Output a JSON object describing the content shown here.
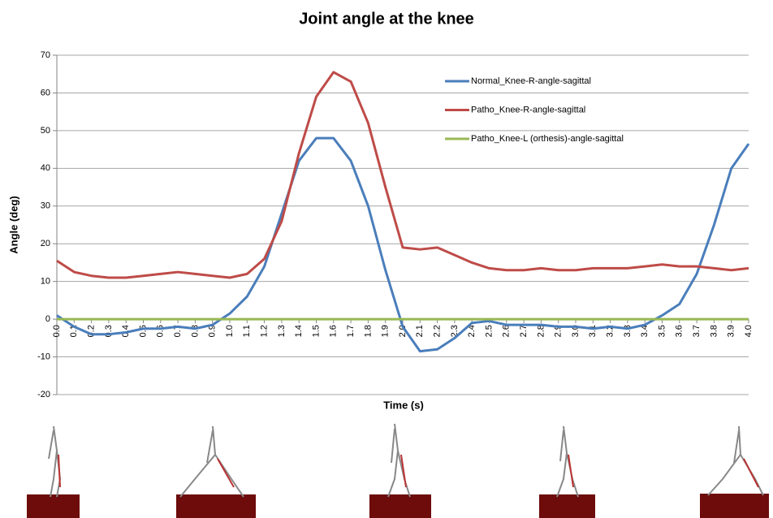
{
  "chart_data": {
    "type": "line",
    "title": "Joint angle at the knee",
    "x_label": "Time (s)",
    "y_label": "Angle (deg)",
    "x": [
      0,
      0.1,
      0.2,
      0.3,
      0.4,
      0.5,
      0.6,
      0.7,
      0.8,
      0.9,
      1,
      1.1,
      1.2,
      1.3,
      1.4,
      1.5,
      1.6,
      1.7,
      1.8,
      1.9,
      2,
      2.1,
      2.2,
      2.3,
      2.4,
      2.5,
      2.6,
      2.7,
      2.8,
      2.9,
      3,
      3.1,
      3.2,
      3.3,
      3.4,
      3.5,
      3.6,
      3.7,
      3.8,
      3.9,
      4
    ],
    "series": [
      {
        "name": "Normal_Knee-R-angle-sagittal",
        "color": "#4a7ebb",
        "values": [
          1,
          -2,
          -4,
          -4,
          -3.5,
          -2.5,
          -2.5,
          -2,
          -2.5,
          -1.5,
          1.5,
          6,
          14,
          28,
          42,
          48,
          48,
          42,
          30,
          13,
          -2,
          -8.5,
          -8,
          -5,
          -1,
          -0.5,
          -1.5,
          -1.5,
          -1.5,
          -2,
          -2,
          -2.5,
          -2,
          -2.5,
          -1.5,
          1,
          4,
          12,
          25,
          40,
          46.5
        ]
      },
      {
        "name": "Patho_Knee-R-angle-sagittal",
        "color": "#be4b48",
        "values": [
          15.5,
          12.5,
          11.5,
          11,
          11,
          11.5,
          12,
          12.5,
          12,
          11.5,
          11,
          12,
          16,
          26,
          44,
          59,
          65.5,
          63,
          52,
          35,
          19,
          18.5,
          19,
          17,
          15,
          13.5,
          13,
          13,
          13.5,
          13,
          13,
          13.5,
          13.5,
          13.5,
          14,
          14.5,
          14,
          14,
          13.5,
          13,
          13.5
        ]
      },
      {
        "name": "Patho_Knee-L (orthesis)-angle-sagittal",
        "color": "#98b954",
        "values": [
          0,
          0,
          0,
          0,
          0,
          0,
          0,
          0,
          0,
          0,
          0,
          0,
          0,
          0,
          0,
          0,
          0,
          0,
          0,
          0,
          0,
          0,
          0,
          0,
          0,
          0,
          0,
          0,
          0,
          0,
          0,
          0,
          0,
          0,
          0,
          0,
          0,
          0,
          0,
          0,
          0
        ]
      }
    ],
    "xlim": [
      0,
      4
    ],
    "xticks": [
      {
        "value": 0,
        "label": "0.0"
      },
      0.1,
      0.2,
      0.3,
      0.4,
      0.5,
      0.6,
      0.7,
      0.8,
      0.9,
      {
        "value": 1,
        "label": "1.0"
      },
      1.1,
      1.2,
      1.3,
      1.4,
      1.5,
      1.6,
      1.7,
      1.8,
      1.9,
      {
        "value": 2,
        "label": "2.0"
      },
      2.1,
      2.2,
      2.3,
      2.4,
      2.5,
      2.6,
      2.7,
      2.8,
      2.9,
      {
        "value": 3,
        "label": "3.0"
      },
      3.1,
      3.2,
      3.3,
      3.4,
      3.5,
      3.6,
      3.7,
      3.8,
      3.9,
      {
        "value": 4,
        "label": "4.0"
      }
    ],
    "ylim": [
      -20,
      70
    ],
    "yticks": [
      -20,
      -10,
      0,
      10,
      20,
      30,
      40,
      50,
      60,
      70
    ],
    "grid": true,
    "legend": "upper-right"
  }
}
